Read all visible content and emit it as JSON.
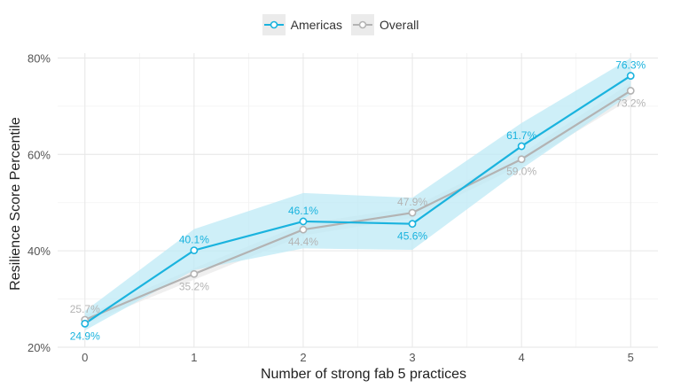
{
  "chart_data": {
    "type": "line",
    "title": "",
    "xlabel": "Number of strong fab 5 practices",
    "ylabel": "Resilience Score Percentile",
    "x": [
      0,
      1,
      2,
      3,
      4,
      5
    ],
    "x_tick_labels": [
      "0",
      "1",
      "2",
      "3",
      "4",
      "5"
    ],
    "xlim": [
      -0.25,
      5.25
    ],
    "ylim": [
      20,
      81
    ],
    "y_ticks": [
      20,
      40,
      60,
      80
    ],
    "y_tick_labels": [
      "20%",
      "40%",
      "60%",
      "80%"
    ],
    "grid": true,
    "legend_position": "top",
    "series": [
      {
        "name": "Americas",
        "color": "#1ab3de",
        "band_color": "#bde9f6",
        "values": [
          24.9,
          40.1,
          46.1,
          45.6,
          61.7,
          76.3
        ],
        "labels": [
          "24.9%",
          "40.1%",
          "46.1%",
          "45.6%",
          "61.7%",
          "76.3%"
        ],
        "ci_lower": [
          23.5,
          36.0,
          40.5,
          40.2,
          57.0,
          72.5
        ],
        "ci_upper": [
          27.5,
          44.5,
          52.0,
          51.0,
          66.5,
          80.0
        ]
      },
      {
        "name": "Overall",
        "color": "#b3b3b3",
        "band_color": "#ececec",
        "values": [
          25.7,
          35.2,
          44.4,
          47.9,
          59.0,
          73.2
        ],
        "labels": [
          "25.7%",
          "35.2%",
          "44.4%",
          "47.9%",
          "59.0%",
          "73.2%"
        ],
        "ci_lower": [
          24.8,
          34.0,
          43.2,
          46.8,
          57.8,
          71.5
        ],
        "ci_upper": [
          26.6,
          36.4,
          45.6,
          49.0,
          60.2,
          74.8
        ]
      }
    ]
  }
}
